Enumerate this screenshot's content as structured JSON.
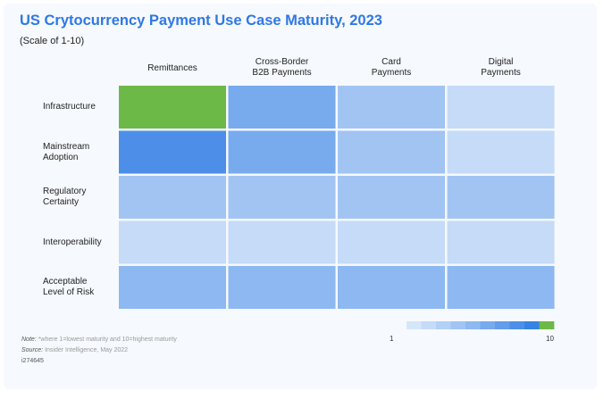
{
  "header": {
    "title": "US Crytocurrency Payment Use Case Maturity, 2023",
    "subtitle": "(Scale of 1-10)"
  },
  "chart_data": {
    "type": "heatmap",
    "title": "US Crytocurrency Payment Use Case Maturity, 2023",
    "subtitle": "(Scale of 1-10)",
    "columns": [
      "Remittances",
      "Cross-Border\nB2B Payments",
      "Card\nPayments",
      "Digital\nPayments"
    ],
    "rows": [
      "Infrastructure",
      "Mainstream\nAdoption",
      "Regulatory\nCertainty",
      "Interoperability",
      "Acceptable\nLevel of Risk"
    ],
    "values": [
      [
        10,
        6,
        4,
        2
      ],
      [
        8,
        6,
        4,
        2
      ],
      [
        4,
        4,
        4,
        4
      ],
      [
        2,
        2,
        2,
        2
      ],
      [
        5,
        5,
        5,
        5
      ]
    ],
    "scale": {
      "min": 1,
      "max": 10,
      "min_label": "1",
      "max_label": "10"
    }
  },
  "colors": {
    "scale": [
      "#d6e6f9",
      "#c5dbf7",
      "#b3d0f5",
      "#a1c4f3",
      "#8db8f1",
      "#78aaee",
      "#639dec",
      "#4d8fe8",
      "#3583e4",
      "#6cb947"
    ],
    "title": "#2f78e4"
  },
  "footer": {
    "note_label": "Note:",
    "note_text": "*where 1=lowest maturity and 10=highest maturity",
    "source_label": "Source:",
    "source_text": "Insider Intelligence, May 2022",
    "id": "i274645"
  }
}
